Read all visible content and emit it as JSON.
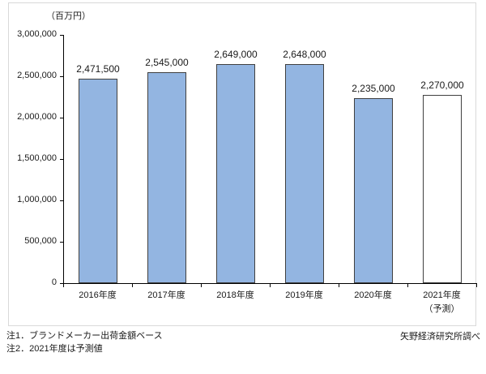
{
  "page": {
    "unit_label": "（百万円）",
    "notes": [
      "注1．ブランドメーカー出荷金額ベース",
      "注2．2021年度は予測値"
    ],
    "source": "矢野経済研究所調べ"
  },
  "chart_data": {
    "type": "bar",
    "title": "",
    "unit_label": "（百万円）",
    "ylabel": "百万円",
    "xlabel": "",
    "ylim": [
      0,
      3000000
    ],
    "ytick_step": 500000,
    "ytick_labels": [
      "0",
      "500,000",
      "1,000,000",
      "1,500,000",
      "2,000,000",
      "2,500,000",
      "3,000,000"
    ],
    "grid": false,
    "legend": null,
    "categories": [
      "2016年度",
      "2017年度",
      "2018年度",
      "2019年度",
      "2020年度",
      "2021年度"
    ],
    "category_sublabels": [
      "",
      "",
      "",
      "",
      "",
      "（予測）"
    ],
    "values": [
      2471500,
      2545000,
      2649000,
      2648000,
      2235000,
      2270000
    ],
    "value_labels": [
      "2,471,500",
      "2,545,000",
      "2,649,000",
      "2,648,000",
      "2,235,000",
      "2,270,000"
    ],
    "bar_filled": [
      true,
      true,
      true,
      true,
      true,
      false
    ],
    "colors": {
      "bar_fill": "#93b5e1",
      "bar_border": "#404040",
      "forecast_fill": "#ffffff",
      "axis": "#000000",
      "text": "#1a1a1a",
      "frame_border": "#d9d9d9"
    }
  }
}
